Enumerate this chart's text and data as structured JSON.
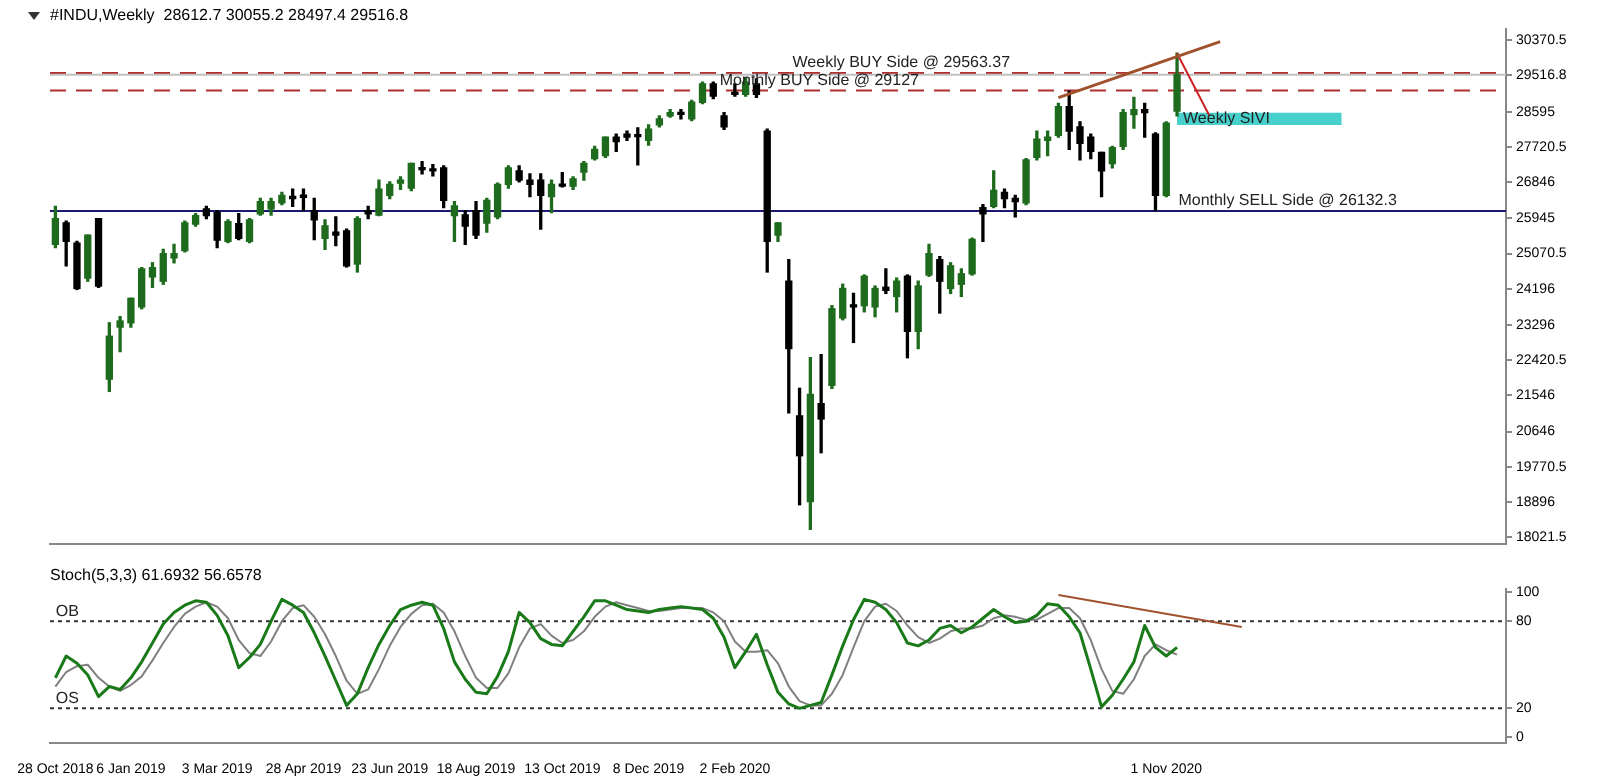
{
  "chart_data": [
    {
      "type": "candlestick",
      "title": "#INDU,Weekly  28612.7 30055.2 28497.4 29516.8",
      "categories": [
        null,
        null,
        null,
        null,
        null,
        null,
        null,
        null,
        null,
        null,
        null,
        null,
        null,
        null,
        null,
        null,
        null,
        null,
        null,
        null,
        null,
        null,
        null,
        null,
        null,
        null,
        null,
        null,
        null,
        null,
        null,
        null,
        null,
        null,
        null,
        null,
        null,
        null,
        null,
        null,
        null,
        null,
        null,
        null,
        null,
        null,
        null,
        null,
        null,
        null,
        null,
        null,
        null,
        null,
        null,
        null,
        null,
        null,
        null,
        null,
        null,
        null,
        null,
        null,
        null,
        null,
        null,
        null,
        null,
        null,
        null,
        null,
        null,
        null,
        null,
        null,
        null,
        null,
        null,
        null,
        null,
        null,
        null,
        null,
        null,
        null,
        null,
        null,
        null,
        null,
        null,
        null,
        null,
        null,
        null,
        null,
        null,
        null,
        null,
        null,
        null,
        null,
        null,
        null,
        null,
        null,
        null,
        null,
        null,
        null,
        null,
        null,
        null,
        null,
        null,
        null,
        null,
        null,
        null,
        null,
        null,
        null,
        null,
        null,
        null,
        null,
        null,
        null,
        null,
        null,
        null,
        null,
        null,
        null,
        null
      ],
      "ohlc": [
        [
          25299,
          26243,
          25223,
          25939
        ],
        [
          25832,
          25878,
          24766,
          25375
        ],
        [
          25330,
          25375,
          24180,
          24203
        ],
        [
          24462,
          25528,
          24385,
          25528
        ],
        [
          25939,
          25939,
          24233,
          24264
        ],
        [
          21949,
          23350,
          21644,
          23015
        ],
        [
          23243,
          23502,
          22634,
          23395
        ],
        [
          23350,
          23959,
          23243,
          23959
        ],
        [
          23746,
          24721,
          23700,
          24690
        ],
        [
          24492,
          24842,
          24233,
          24721
        ],
        [
          24385,
          25177,
          24309,
          25071
        ],
        [
          24964,
          25299,
          24842,
          25071
        ],
        [
          25147,
          25878,
          25116,
          25832
        ],
        [
          25802,
          26061,
          25756,
          26015
        ],
        [
          26182,
          26243,
          25939,
          26015
        ],
        [
          26091,
          26137,
          25223,
          25406
        ],
        [
          25375,
          25908,
          25345,
          25863
        ],
        [
          25817,
          26061,
          25421,
          25452
        ],
        [
          25375,
          25939,
          25345,
          25908
        ],
        [
          26061,
          26441,
          26030,
          26365
        ],
        [
          26182,
          26441,
          26030,
          26365
        ],
        [
          26335,
          26594,
          26289,
          26518
        ],
        [
          26487,
          26670,
          26243,
          26441
        ],
        [
          26518,
          26670,
          26137,
          26472
        ],
        [
          26137,
          26441,
          25421,
          25908
        ],
        [
          25452,
          25908,
          25177,
          25756
        ],
        [
          25604,
          25985,
          25269,
          25528
        ],
        [
          25634,
          25680,
          24740,
          24766
        ],
        [
          24812,
          25985,
          24614,
          25939
        ],
        [
          26137,
          26243,
          25939,
          26061
        ],
        [
          26030,
          26898,
          26015,
          26670
        ],
        [
          26518,
          26853,
          26441,
          26792
        ],
        [
          26822,
          26975,
          26670,
          26898
        ],
        [
          26700,
          27310,
          26639,
          27310
        ],
        [
          27203,
          27355,
          27051,
          27157
        ],
        [
          27157,
          27279,
          27005,
          27127
        ],
        [
          27203,
          27249,
          26213,
          26396
        ],
        [
          26015,
          26365,
          25375,
          26259
        ],
        [
          26030,
          26137,
          25299,
          25756
        ],
        [
          26137,
          26365,
          25452,
          25528
        ],
        [
          25832,
          26441,
          25604,
          26396
        ],
        [
          25985,
          26822,
          25939,
          26792
        ],
        [
          26792,
          27249,
          26700,
          27203
        ],
        [
          27127,
          27249,
          26853,
          26898
        ],
        [
          26898,
          27051,
          26487,
          26792
        ],
        [
          26898,
          27051,
          25680,
          26518
        ],
        [
          26487,
          26898,
          26091,
          26792
        ],
        [
          26792,
          27081,
          26730,
          26746
        ],
        [
          26746,
          26975,
          26670,
          26929
        ],
        [
          27096,
          27355,
          26898,
          27310
        ],
        [
          27431,
          27736,
          27401,
          27660
        ],
        [
          27508,
          27965,
          27462,
          27965
        ],
        [
          27965,
          28041,
          27614,
          27858
        ],
        [
          28041,
          28117,
          27888,
          27965
        ],
        [
          28010,
          28193,
          27279,
          27980
        ],
        [
          27888,
          28269,
          27767,
          28162
        ],
        [
          28269,
          28497,
          28223,
          28421
        ],
        [
          28497,
          28650,
          28467,
          28574
        ],
        [
          28543,
          28650,
          28421,
          28530
        ],
        [
          28421,
          28878,
          28376,
          28833
        ],
        [
          28833,
          29335,
          28802,
          29290
        ],
        [
          29290,
          29335,
          28924,
          28985
        ],
        [
          28497,
          28574,
          28162,
          28223
        ],
        [
          29076,
          29290,
          28985,
          29031
        ],
        [
          29031,
          29442,
          28985,
          29335
        ],
        [
          29290,
          29411,
          28954,
          29031
        ],
        [
          28117,
          28162,
          24614,
          25375
        ],
        [
          25528,
          25832,
          25375,
          25832
        ],
        [
          24385,
          24919,
          21111,
          22710
        ],
        [
          21035,
          21720,
          18827,
          20045
        ],
        [
          18903,
          22482,
          18217,
          21568
        ],
        [
          21339,
          22558,
          20121,
          20959
        ],
        [
          21796,
          23776,
          21720,
          23700
        ],
        [
          23472,
          24309,
          23426,
          24203
        ],
        [
          23776,
          24081,
          22862,
          23746
        ],
        [
          23776,
          24538,
          23624,
          24507
        ],
        [
          23746,
          24264,
          23502,
          24203
        ],
        [
          24233,
          24690,
          24081,
          24157
        ],
        [
          24005,
          24462,
          23624,
          24385
        ],
        [
          24507,
          24538,
          22482,
          23137
        ],
        [
          23137,
          24385,
          22710,
          24264
        ],
        [
          24538,
          25299,
          24507,
          25071
        ],
        [
          24919,
          24995,
          23594,
          24385
        ],
        [
          24203,
          24842,
          24081,
          24766
        ],
        [
          24309,
          24690,
          24005,
          24568
        ],
        [
          24568,
          25452,
          24538,
          25421
        ],
        [
          26213,
          26289,
          25375,
          26061
        ],
        [
          26243,
          27127,
          26213,
          26639
        ],
        [
          26594,
          26670,
          26213,
          26441
        ],
        [
          26441,
          26518,
          25985,
          26365
        ],
        [
          26335,
          27431,
          26289,
          27401
        ],
        [
          27462,
          28117,
          27401,
          27919
        ],
        [
          27888,
          28117,
          27508,
          27965
        ],
        [
          28010,
          28802,
          27965,
          28726
        ],
        [
          28726,
          29107,
          27660,
          28117
        ],
        [
          28223,
          28345,
          27401,
          27812
        ],
        [
          27965,
          28041,
          27431,
          27614
        ],
        [
          27584,
          27584,
          26487,
          27127
        ],
        [
          27310,
          27736,
          27203,
          27706
        ],
        [
          27736,
          28650,
          27660,
          28574
        ],
        [
          28528,
          28954,
          28193,
          28650
        ],
        [
          28650,
          28802,
          27965,
          28574
        ],
        [
          28041,
          28071,
          26137,
          26518
        ],
        [
          26518,
          28345,
          26487,
          28315
        ],
        [
          28612.7,
          30055.2,
          28497.4,
          29516.8
        ],
        null,
        null,
        null,
        null,
        null,
        null,
        null,
        null,
        null,
        null,
        null,
        null,
        null,
        null,
        null,
        null,
        null,
        null,
        null,
        null,
        null,
        null,
        null,
        null,
        null,
        null,
        null,
        null,
        null,
        null
      ],
      "colors": [
        "#1e6b1e",
        "#000000",
        "#000000",
        "#1e6b1e",
        "#000000",
        "#1e6b1e",
        "#1e6b1e",
        "#1e6b1e",
        "#1e6b1e",
        "#1e6b1e",
        "#1e6b1e",
        "#1e6b1e",
        "#1e6b1e",
        "#1e6b1e",
        "#000000",
        "#000000",
        "#1e6b1e",
        "#000000",
        "#1e6b1e",
        "#1e6b1e",
        "#1e6b1e",
        "#1e6b1e",
        "#000000",
        "#000000",
        "#000000",
        "#1e6b1e",
        "#000000",
        "#000000",
        "#1e6b1e",
        "#000000",
        "#1e6b1e",
        "#1e6b1e",
        "#1e6b1e",
        "#1e6b1e",
        "#000000",
        "#000000",
        "#000000",
        "#1e6b1e",
        "#000000",
        "#000000",
        "#1e6b1e",
        "#1e6b1e",
        "#1e6b1e",
        "#000000",
        "#000000",
        "#000000",
        "#1e6b1e",
        "#000000",
        "#1e6b1e",
        "#1e6b1e",
        "#1e6b1e",
        "#1e6b1e",
        "#000000",
        "#000000",
        "#000000",
        "#1e6b1e",
        "#1e6b1e",
        "#1e6b1e",
        "#000000",
        "#1e6b1e",
        "#1e6b1e",
        "#000000",
        "#000000",
        "#000000",
        "#1e6b1e",
        "#000000",
        "#000000",
        "#1e6b1e",
        "#000000",
        "#000000",
        "#1e6b1e",
        "#000000",
        "#1e6b1e",
        "#1e6b1e",
        "#000000",
        "#1e6b1e",
        "#1e6b1e",
        "#000000",
        "#1e6b1e",
        "#000000",
        "#1e6b1e",
        "#1e6b1e",
        "#000000",
        "#1e6b1e",
        "#1e6b1e",
        "#1e6b1e",
        "#000000",
        "#1e6b1e",
        "#000000",
        "#000000",
        "#1e6b1e",
        "#1e6b1e",
        "#1e6b1e",
        "#1e6b1e",
        "#000000",
        "#000000",
        "#000000",
        "#000000",
        "#1e6b1e",
        "#1e6b1e",
        "#1e6b1e",
        "#000000",
        "#000000",
        "#1e6b1e",
        "#1e6b1e",
        null,
        null,
        null,
        null,
        null,
        null,
        null,
        null,
        null,
        null,
        null,
        null,
        null,
        null,
        null,
        null,
        null,
        null,
        null,
        null,
        null,
        null,
        null,
        null,
        null,
        null,
        null,
        null,
        null,
        null
      ],
      "series": [
        {
          "type": "line",
          "color": "#a0522d",
          "values": [
            null,
            null,
            null,
            null,
            null,
            null,
            null,
            null,
            null,
            null,
            null,
            null,
            null,
            null,
            null,
            null,
            null,
            null,
            null,
            null,
            null,
            null,
            null,
            null,
            null,
            null,
            null,
            null,
            null,
            null,
            null,
            null,
            null,
            null,
            null,
            null,
            null,
            null,
            null,
            null,
            null,
            null,
            null,
            null,
            null,
            null,
            null,
            null,
            null,
            null,
            null,
            null,
            null,
            null,
            null,
            null,
            null,
            null,
            null,
            null,
            null,
            null,
            null,
            null,
            null,
            null,
            null,
            null,
            null,
            null,
            null,
            null,
            null,
            null,
            null,
            null,
            null,
            null,
            null,
            null,
            null,
            null,
            null,
            null,
            null,
            null,
            null,
            null,
            null,
            null,
            null,
            null,
            null,
            28950,
            null,
            null,
            null,
            null,
            null,
            null,
            null,
            null,
            null,
            null,
            null,
            null,
            null,
            null,
            30340,
            null,
            null,
            null,
            null,
            null,
            null,
            null,
            null,
            null,
            null,
            null,
            null,
            null,
            null,
            null,
            null,
            null,
            null,
            null,
            null,
            null,
            null,
            null,
            null,
            null,
            null
          ]
        },
        {
          "type": "line",
          "color": "#cc2222",
          "values": [
            null,
            null,
            null,
            null,
            null,
            null,
            null,
            null,
            null,
            null,
            null,
            null,
            null,
            null,
            null,
            null,
            null,
            null,
            null,
            null,
            null,
            null,
            null,
            null,
            null,
            null,
            null,
            null,
            null,
            null,
            null,
            null,
            null,
            null,
            null,
            null,
            null,
            null,
            null,
            null,
            null,
            null,
            null,
            null,
            null,
            null,
            null,
            null,
            null,
            null,
            null,
            null,
            null,
            null,
            null,
            null,
            null,
            null,
            null,
            null,
            null,
            null,
            null,
            null,
            null,
            null,
            null,
            null,
            null,
            null,
            null,
            null,
            null,
            null,
            null,
            null,
            null,
            null,
            null,
            null,
            null,
            null,
            null,
            null,
            null,
            null,
            null,
            null,
            null,
            null,
            null,
            null,
            null,
            null,
            null,
            null,
            null,
            null,
            null,
            null,
            null,
            null,
            null,
            null,
            30050,
            null,
            null,
            28500,
            null,
            null,
            null,
            null,
            null,
            null,
            null,
            null,
            null,
            null,
            null,
            null,
            null,
            null,
            null,
            null,
            null,
            null,
            null,
            null,
            null,
            null,
            null,
            null,
            null,
            null,
            null
          ]
        }
      ],
      "ylim": [
        17850,
        30650
      ],
      "yticks": [
        30370.5,
        29516.8,
        28595.0,
        27720.5,
        26846.0,
        25945.0,
        25070.5,
        24196.0,
        23296.0,
        22420.5,
        21546.0,
        20646.0,
        19770.5,
        18896.0,
        18021.5
      ],
      "ref_lines": [
        {
          "axis": "y",
          "value": 29563.37,
          "label": "Weekly BUY Side @ 29563.37",
          "color": "#b03030",
          "line_style": "dashed"
        },
        {
          "axis": "y",
          "value": 29127,
          "label": "Monthly BUY Side @ 29127",
          "color": "#b03030",
          "line_style": "dashed"
        },
        {
          "axis": "y",
          "value": 26132.3,
          "label": "Monthly SELL Side @ 26132.3",
          "color": "#1a1a70",
          "line_style": "solid"
        },
        {
          "axis": "y",
          "value": 29516.8,
          "color": "#c0c0c0",
          "line_style": "solid"
        }
      ],
      "bands": [
        {
          "axis": "y",
          "from": 28270,
          "to": 28570,
          "label": "Weekly SIVI",
          "color": "#48d1cc"
        }
      ],
      "tick_labels": "y",
      "marker": "none"
    },
    {
      "type": "line",
      "title": "Stoch(5,3,3) 61.6932 56.6578",
      "categories": [
        "28 Oct 2018",
        null,
        null,
        null,
        null,
        null,
        null,
        "6 Jan 2019",
        null,
        null,
        null,
        null,
        null,
        null,
        null,
        "3 Mar 2019",
        null,
        null,
        null,
        null,
        null,
        null,
        null,
        "28 Apr 2019",
        null,
        null,
        null,
        null,
        null,
        null,
        null,
        "23 Jun 2019",
        null,
        null,
        null,
        null,
        null,
        null,
        null,
        "18 Aug 2019",
        null,
        null,
        null,
        null,
        null,
        null,
        null,
        "13 Oct 2019",
        null,
        null,
        null,
        null,
        null,
        null,
        null,
        "8 Dec 2019",
        null,
        null,
        null,
        null,
        null,
        null,
        null,
        "2 Feb 2020",
        null,
        null,
        null,
        null,
        null,
        null,
        null,
        null,
        null,
        null,
        null,
        null,
        null,
        null,
        null,
        null,
        null,
        null,
        null,
        null,
        null,
        null,
        null,
        null,
        null,
        null,
        null,
        null,
        null,
        null,
        null,
        null,
        null,
        null,
        null,
        null,
        null,
        null,
        null,
        "1 Nov 2020",
        null,
        null,
        null,
        null,
        null,
        null,
        null,
        null,
        null,
        null,
        null,
        null,
        null,
        null,
        null,
        null,
        null,
        null,
        null,
        null,
        null,
        null,
        null,
        null,
        null,
        null,
        null,
        null,
        null,
        null,
        null
      ],
      "series": [
        {
          "color": "#1a7a1a",
          "values": [
            41,
            56,
            51,
            43,
            28,
            35,
            33,
            41,
            52,
            65,
            78,
            86,
            91,
            94,
            93,
            84,
            70,
            48,
            55,
            64,
            80,
            95,
            91,
            86,
            72,
            56,
            39,
            22,
            30,
            48,
            64,
            77,
            88,
            91,
            93,
            91,
            75,
            52,
            40,
            31,
            30,
            42,
            59,
            86,
            79,
            68,
            64,
            63,
            73,
            83,
            94,
            94,
            91,
            88,
            87,
            86,
            88,
            89,
            90,
            89,
            88,
            82,
            69,
            48,
            59,
            71,
            50,
            31,
            23,
            20,
            22,
            24,
            43,
            63,
            81,
            95,
            93,
            88,
            79,
            65,
            63,
            67,
            75,
            77,
            72,
            76,
            82,
            88,
            83,
            79,
            80,
            84,
            92,
            91,
            83,
            72,
            47,
            21,
            29,
            40,
            52,
            77,
            62,
            56,
            62,
            null,
            null,
            null,
            null,
            null,
            null,
            null,
            null,
            null,
            null,
            null,
            null,
            null,
            null,
            null,
            null,
            null,
            null,
            null,
            null,
            null,
            null,
            null,
            null,
            null,
            null,
            null,
            null,
            null,
            null
          ]
        },
        {
          "color": "#808080",
          "values": [
            35,
            45,
            49,
            50,
            41,
            35,
            32,
            36,
            42,
            53,
            65,
            76,
            85,
            90,
            93,
            90,
            82,
            67,
            58,
            56,
            66,
            80,
            89,
            91,
            83,
            71,
            56,
            39,
            30,
            33,
            47,
            63,
            76,
            85,
            91,
            92,
            86,
            73,
            56,
            41,
            34,
            34,
            44,
            62,
            75,
            78,
            70,
            65,
            67,
            73,
            83,
            90,
            93,
            91,
            89,
            87,
            87,
            88,
            89,
            89,
            89,
            86,
            80,
            66,
            59,
            59,
            60,
            51,
            35,
            25,
            22,
            22,
            30,
            43,
            62,
            80,
            90,
            92,
            87,
            77,
            69,
            65,
            68,
            73,
            75,
            75,
            77,
            82,
            84,
            83,
            81,
            81,
            85,
            89,
            89,
            82,
            67,
            47,
            32,
            30,
            40,
            56,
            64,
            60,
            57,
            null,
            null,
            null,
            null,
            null,
            null,
            null,
            null,
            null,
            null,
            null,
            null,
            null,
            null,
            null,
            null,
            null,
            null,
            null,
            null,
            null,
            null,
            null,
            null,
            null,
            null,
            null,
            null,
            null,
            null
          ]
        },
        {
          "color": "#a0522d",
          "values": [
            null,
            null,
            null,
            null,
            null,
            null,
            null,
            null,
            null,
            null,
            null,
            null,
            null,
            null,
            null,
            null,
            null,
            null,
            null,
            null,
            null,
            null,
            null,
            null,
            null,
            null,
            null,
            null,
            null,
            null,
            null,
            null,
            null,
            null,
            null,
            null,
            null,
            null,
            null,
            null,
            null,
            null,
            null,
            null,
            null,
            null,
            null,
            null,
            null,
            null,
            null,
            null,
            null,
            null,
            null,
            null,
            null,
            null,
            null,
            null,
            null,
            null,
            null,
            null,
            null,
            null,
            null,
            null,
            null,
            null,
            null,
            null,
            null,
            null,
            null,
            null,
            null,
            null,
            null,
            null,
            null,
            null,
            null,
            null,
            null,
            null,
            null,
            null,
            null,
            null,
            null,
            null,
            null,
            98,
            null,
            null,
            null,
            null,
            null,
            null,
            null,
            null,
            null,
            null,
            null,
            null,
            null,
            null,
            null,
            null,
            76,
            null,
            null,
            null,
            null,
            null,
            null,
            null,
            null,
            null,
            null,
            null,
            null,
            null,
            null,
            null,
            null,
            null,
            null,
            null,
            null,
            null,
            null,
            null,
            null
          ]
        }
      ],
      "ylim": [
        -4,
        102
      ],
      "yticks": [
        0,
        20,
        80,
        100
      ],
      "ref_lines": [
        {
          "axis": "y",
          "value": 80,
          "label": "OB",
          "color": "#333333",
          "line_style": "dotted"
        },
        {
          "axis": "y",
          "value": 20,
          "label": "OS",
          "color": "#333333",
          "line_style": "dotted"
        }
      ],
      "marker": "none"
    }
  ]
}
